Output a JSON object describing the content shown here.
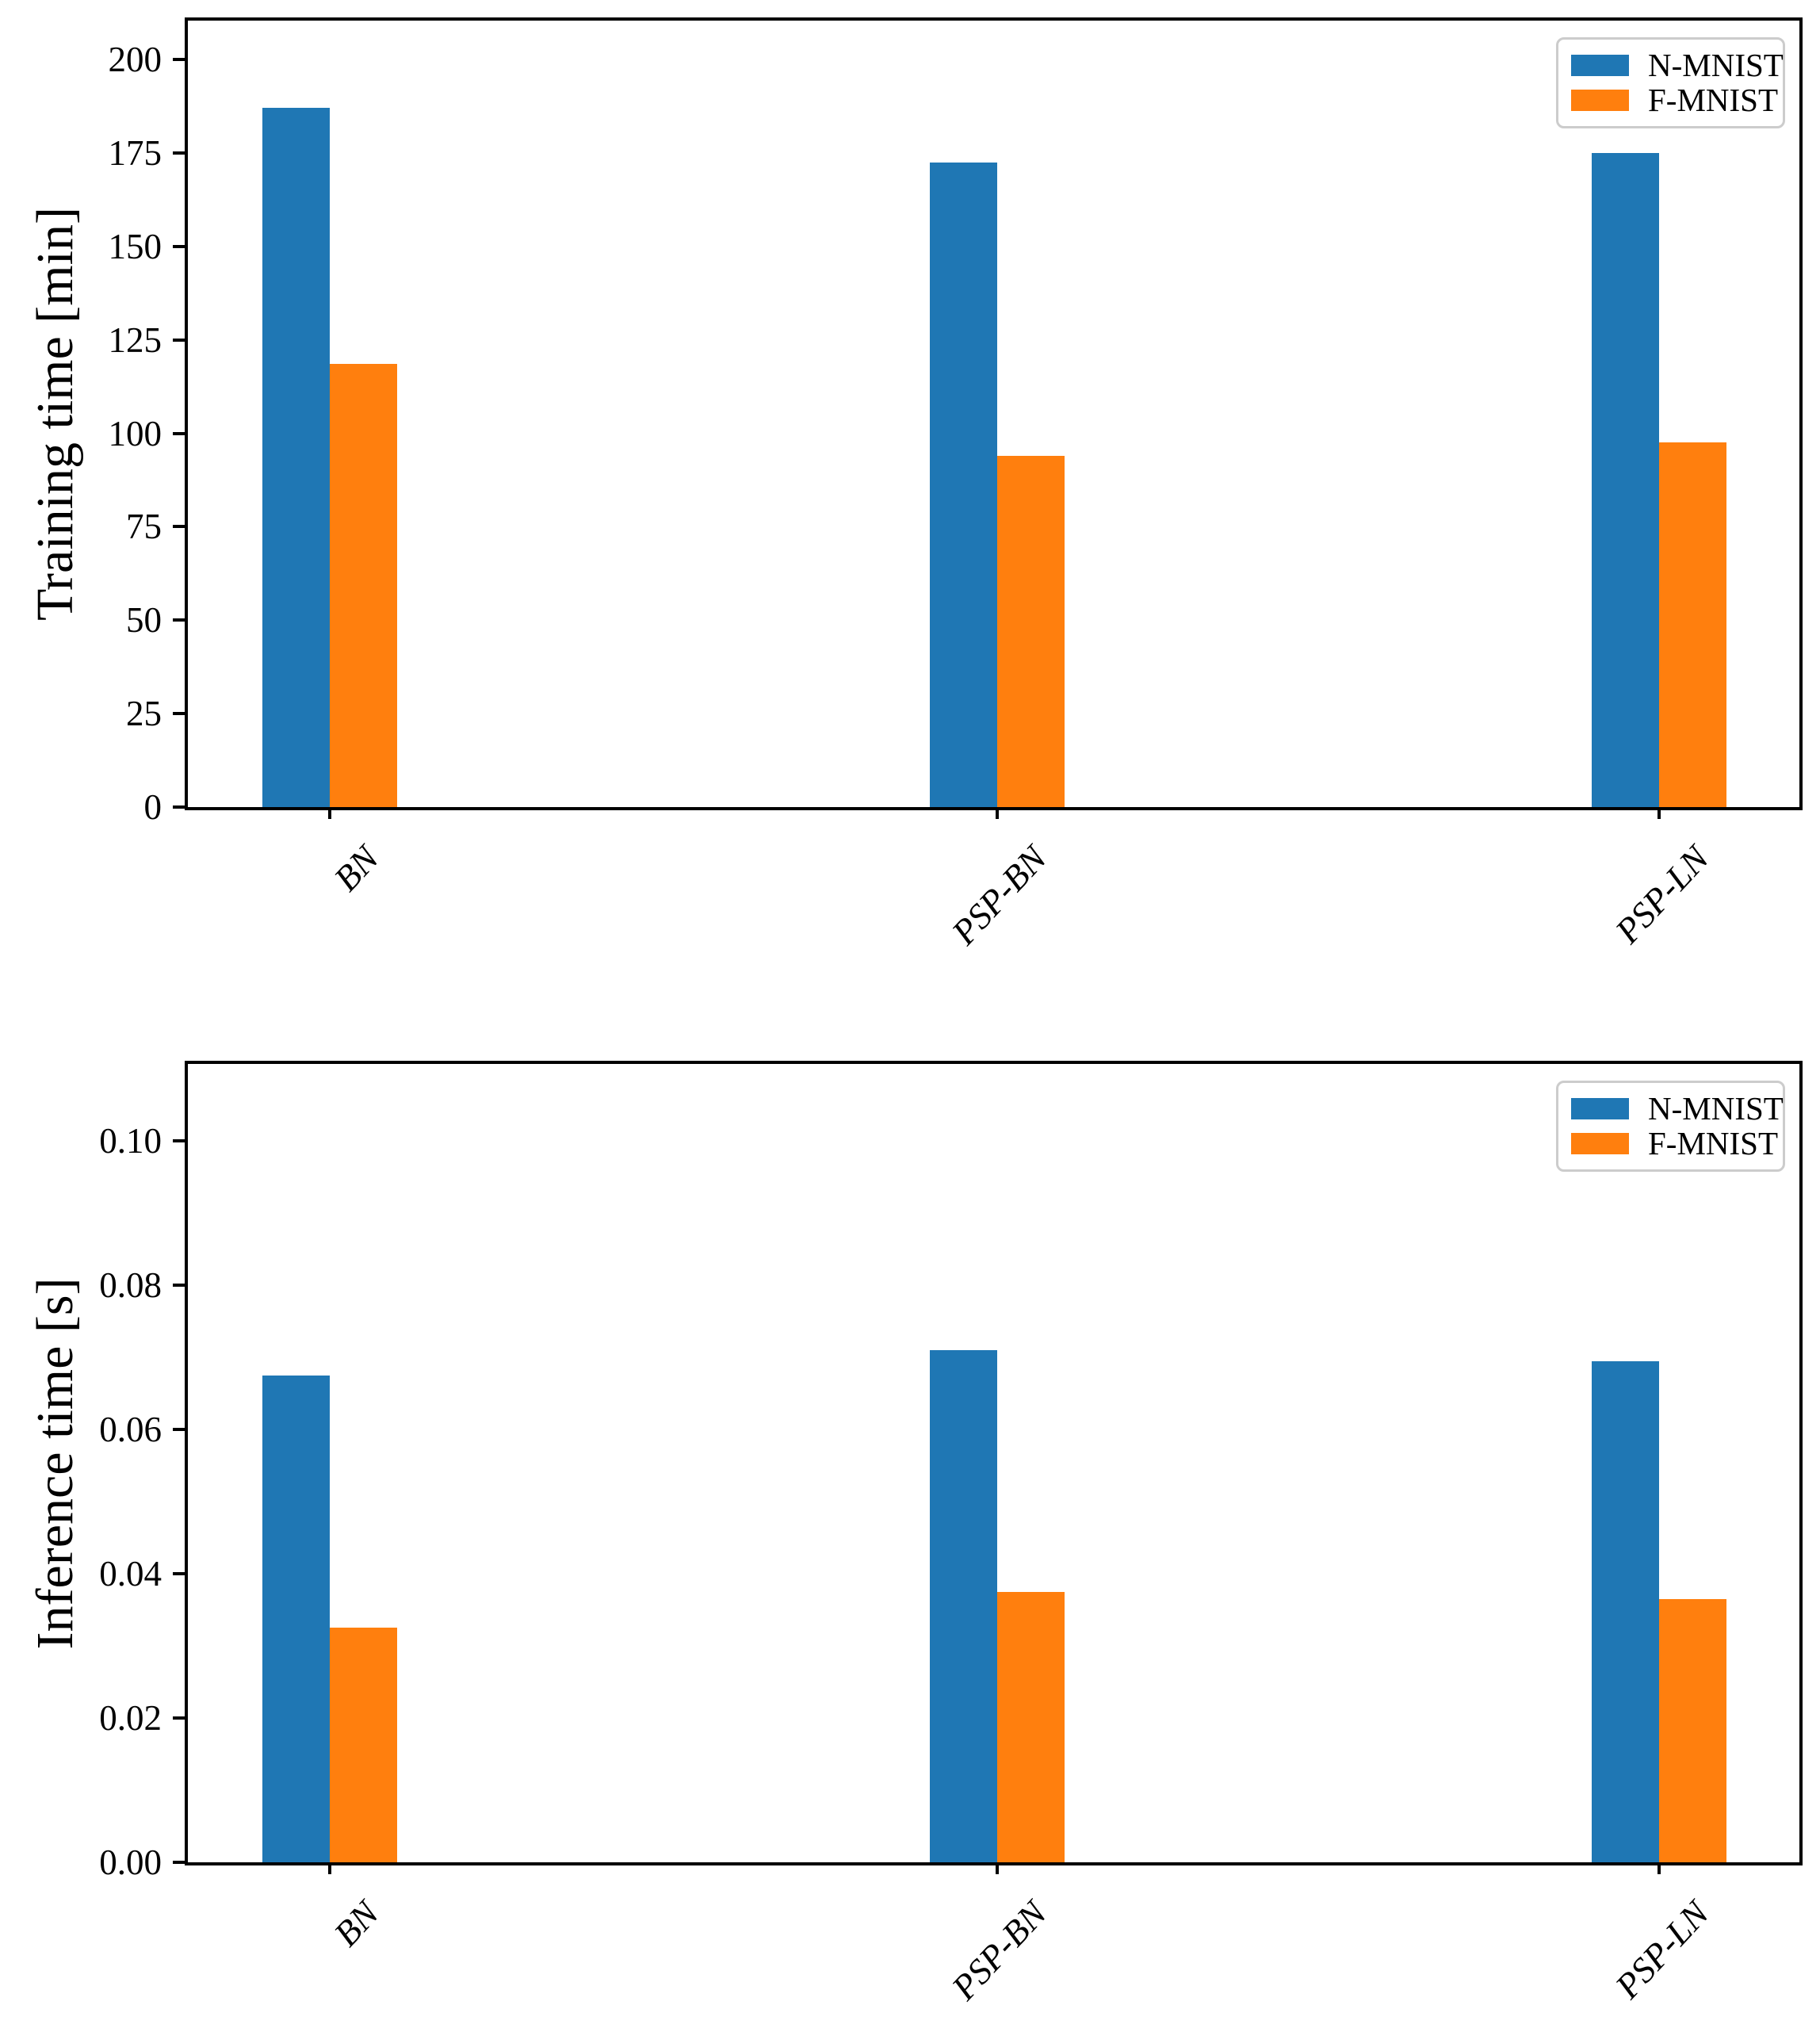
{
  "figure": {
    "background": "#ffffff",
    "series_colors": {
      "N-MNIST": "#1f77b4",
      "F-MNIST": "#ff7f0e"
    },
    "axis_color": "#000000",
    "legend_border_color": "#cccccc"
  },
  "chart_data": [
    {
      "type": "bar",
      "title": "",
      "xlabel": "",
      "ylabel": "Training time [min]",
      "categories": [
        "BN",
        "PSP-BN",
        "PSP-LN"
      ],
      "series": [
        {
          "name": "N-MNIST",
          "color": "#1f77b4",
          "values": [
            187,
            172.5,
            175
          ]
        },
        {
          "name": "F-MNIST",
          "color": "#ff7f0e",
          "values": [
            118.5,
            94,
            97.5
          ]
        }
      ],
      "yticks": [
        0,
        25,
        50,
        75,
        100,
        125,
        150,
        175,
        200
      ],
      "ytick_labels": [
        "0",
        "25",
        "50",
        "75",
        "100",
        "125",
        "150",
        "175",
        "200"
      ],
      "ylim": [
        0,
        210.4
      ],
      "grid": false,
      "legend_position": "upper right",
      "legend_entries": [
        "N-MNIST",
        "F-MNIST"
      ]
    },
    {
      "type": "bar",
      "title": "",
      "xlabel": "",
      "ylabel": "Inference time [s]",
      "categories": [
        "BN",
        "PSP-BN",
        "PSP-LN"
      ],
      "series": [
        {
          "name": "N-MNIST",
          "color": "#1f77b4",
          "values": [
            0.0675,
            0.071,
            0.0695
          ]
        },
        {
          "name": "F-MNIST",
          "color": "#ff7f0e",
          "values": [
            0.0325,
            0.0375,
            0.0365
          ]
        }
      ],
      "yticks": [
        0,
        0.02,
        0.04,
        0.06,
        0.08,
        0.1
      ],
      "ytick_labels": [
        "0.00",
        "0.02",
        "0.04",
        "0.06",
        "0.08",
        "0.10"
      ],
      "ylim": [
        0,
        0.1107
      ],
      "grid": false,
      "legend_position": "upper right",
      "legend_entries": [
        "N-MNIST",
        "F-MNIST"
      ]
    }
  ]
}
